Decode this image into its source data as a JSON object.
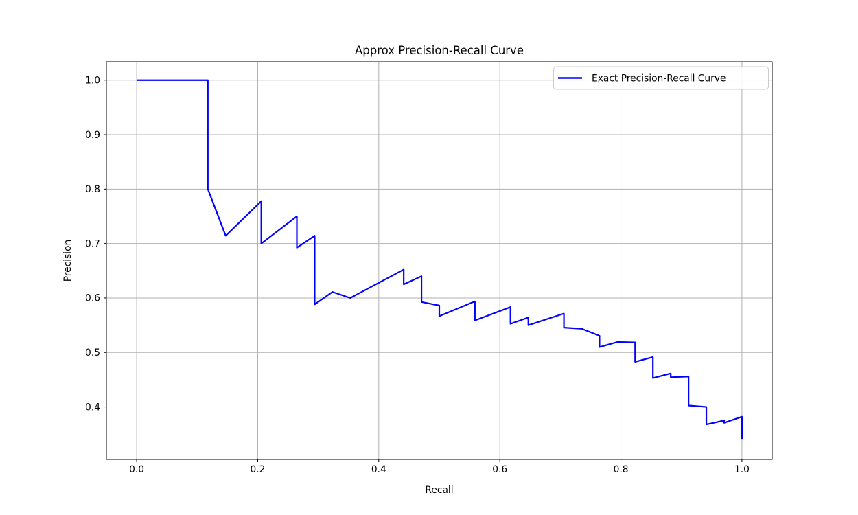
{
  "figure": {
    "background": "#ffffff"
  },
  "chart_data": {
    "type": "line",
    "title": "Approx Precision-Recall Curve",
    "xlabel": "Recall",
    "ylabel": "Precision",
    "grid": true,
    "legend_position": "upper right",
    "xlim": [
      -0.05,
      1.05
    ],
    "ylim": [
      0.3036,
      1.0337
    ],
    "xticks": [
      0.0,
      0.2,
      0.4,
      0.6,
      0.8,
      1.0
    ],
    "yticks": [
      0.4,
      0.5,
      0.6,
      0.7,
      0.8,
      0.9,
      1.0
    ],
    "colors": {
      "line": "#0000ff",
      "grid": "#b0b0b0",
      "axes": "#000000",
      "legend_border": "#cccccc",
      "legend_bg": "#ffffff"
    },
    "series": [
      {
        "name": "Exact Precision-Recall Curve",
        "color": "#0000ff",
        "x": [
          0.0,
          0.1176,
          0.1176,
          0.1471,
          0.2059,
          0.2059,
          0.2647,
          0.2647,
          0.2941,
          0.2941,
          0.3235,
          0.3529,
          0.4412,
          0.4412,
          0.4706,
          0.4706,
          0.5,
          0.5,
          0.5588,
          0.5588,
          0.6176,
          0.6176,
          0.6471,
          0.6471,
          0.7059,
          0.7059,
          0.7353,
          0.7647,
          0.7647,
          0.7941,
          0.8235,
          0.8235,
          0.8529,
          0.8529,
          0.8824,
          0.8824,
          0.9118,
          0.9118,
          0.9412,
          0.9412,
          0.9706,
          0.9706,
          1.0,
          1.0
        ],
        "y": [
          1.0,
          1.0,
          0.8,
          0.7143,
          0.7778,
          0.7,
          0.75,
          0.6923,
          0.7143,
          0.5882,
          0.6111,
          0.6,
          0.6522,
          0.625,
          0.64,
          0.5926,
          0.5862,
          0.5667,
          0.5938,
          0.5588,
          0.5833,
          0.5526,
          0.5641,
          0.55,
          0.5714,
          0.5455,
          0.5435,
          0.5306,
          0.5098,
          0.5192,
          0.5185,
          0.4828,
          0.4915,
          0.4531,
          0.4615,
          0.4545,
          0.4559,
          0.4026,
          0.4,
          0.3678,
          0.375,
          0.3708,
          0.382,
          0.34
        ]
      }
    ]
  }
}
